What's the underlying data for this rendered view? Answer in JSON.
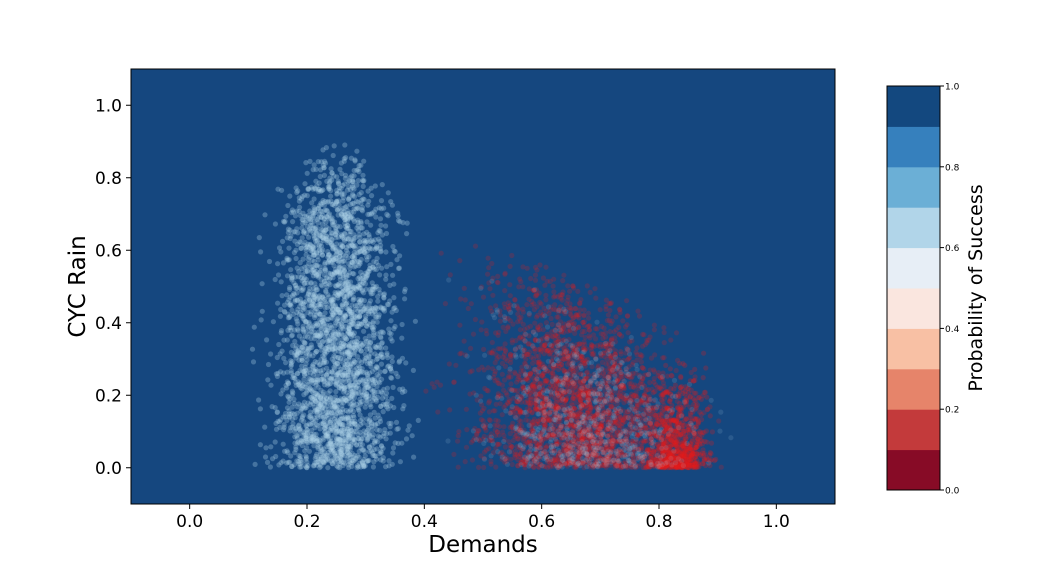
{
  "chart_data": {
    "type": "scatter",
    "background_fill": "#15477f",
    "xlabel": "Demands",
    "ylabel": "CYC Rain",
    "xlim": [
      -0.1,
      1.1
    ],
    "ylim": [
      -0.1,
      1.1
    ],
    "x_ticks": [
      "0.0",
      "0.2",
      "0.4",
      "0.6",
      "0.8",
      "1.0"
    ],
    "y_ticks": [
      "0.0",
      "0.2",
      "0.4",
      "0.6",
      "0.8",
      "1.0"
    ],
    "grid": false,
    "series": [
      {
        "color": "#abcfe6",
        "clusters": [
          {
            "x_range": [
              0.05,
              0.4
            ],
            "y_range": [
              0.0,
              0.95
            ]
          },
          {
            "x_range": [
              0.4,
              0.95
            ],
            "y_range": [
              0.0,
              0.7
            ]
          }
        ]
      },
      {
        "color": "#e31a1c",
        "clusters": [
          {
            "x_range": [
              0.37,
              0.95
            ],
            "y_range": [
              0.0,
              0.8
            ]
          },
          {
            "x_range": [
              0.75,
              0.92
            ],
            "y_range": [
              0.0,
              0.3
            ]
          }
        ]
      }
    ],
    "colorbar": {
      "label": "Probability of Success",
      "range": [
        0.0,
        1.0
      ],
      "ticks": [
        "0.0",
        "0.2",
        "0.4",
        "0.6",
        "0.8",
        "1.0"
      ],
      "colors": [
        "#870b26",
        "#c33a3b",
        "#e6846a",
        "#f8c0a4",
        "#fae6df",
        "#e7eef6",
        "#b1d5e9",
        "#6bafd6",
        "#3680bd",
        "#13487f"
      ]
    }
  }
}
